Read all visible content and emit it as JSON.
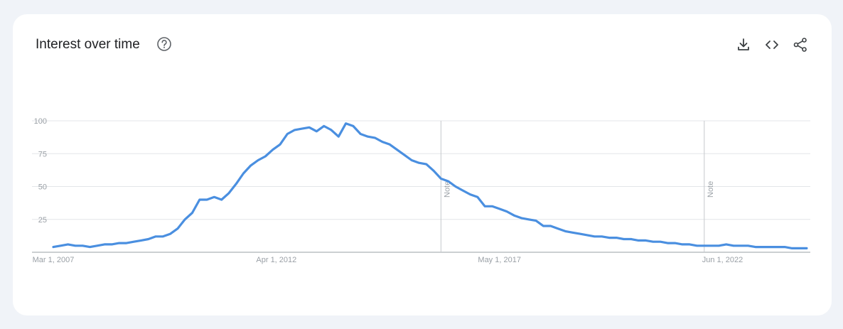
{
  "card": {
    "title": "Interest over time",
    "help_icon": "help-circle-icon",
    "actions": [
      {
        "name": "download-icon"
      },
      {
        "name": "embed-icon"
      },
      {
        "name": "share-icon"
      }
    ]
  },
  "chart_data": {
    "type": "line",
    "title": "Interest over time",
    "xlabel": "",
    "ylabel": "",
    "ylim": [
      0,
      100
    ],
    "y_ticks": [
      25,
      50,
      75,
      100
    ],
    "x_tick_labels": [
      "Mar 1, 2007",
      "Apr 1, 2012",
      "May 1, 2017",
      "Jun 1, 2022"
    ],
    "x_range": [
      "2007-03",
      "2024-06"
    ],
    "grid": true,
    "line_color": "#4a8fe0",
    "notes": [
      {
        "x": "2016-01",
        "label": "Note"
      },
      {
        "x": "2022-01",
        "label": "Note"
      }
    ],
    "series": [
      {
        "x": [
          "2007-03",
          "2007-05",
          "2007-07",
          "2007-09",
          "2007-11",
          "2008-01",
          "2008-03",
          "2008-05",
          "2008-07",
          "2008-09",
          "2008-11",
          "2009-01",
          "2009-03",
          "2009-05",
          "2009-07",
          "2009-09",
          "2009-11",
          "2010-01",
          "2010-03",
          "2010-05",
          "2010-07",
          "2010-09",
          "2010-11",
          "2011-01",
          "2011-03",
          "2011-05",
          "2011-07",
          "2011-09",
          "2011-11",
          "2012-01",
          "2012-03",
          "2012-05",
          "2012-07",
          "2012-09",
          "2012-11",
          "2013-01",
          "2013-03",
          "2013-05",
          "2013-07",
          "2013-09",
          "2013-11",
          "2014-01",
          "2014-03",
          "2014-05",
          "2014-07",
          "2014-09",
          "2014-11",
          "2015-01",
          "2015-03",
          "2015-05",
          "2015-07",
          "2015-09",
          "2015-11",
          "2016-01",
          "2016-03",
          "2016-05",
          "2016-07",
          "2016-09",
          "2016-11",
          "2017-01",
          "2017-03",
          "2017-05",
          "2017-07",
          "2017-09",
          "2017-11",
          "2018-01",
          "2018-03",
          "2018-05",
          "2018-07",
          "2018-09",
          "2018-11",
          "2019-01",
          "2019-03",
          "2019-05",
          "2019-07",
          "2019-09",
          "2019-11",
          "2020-01",
          "2020-03",
          "2020-05",
          "2020-07",
          "2020-09",
          "2020-11",
          "2021-01",
          "2021-03",
          "2021-05",
          "2021-07",
          "2021-09",
          "2021-11",
          "2022-01",
          "2022-03",
          "2022-05",
          "2022-07",
          "2022-09",
          "2022-11",
          "2023-01",
          "2023-03",
          "2023-05",
          "2023-07",
          "2023-09",
          "2023-11",
          "2024-01",
          "2024-03",
          "2024-05"
        ],
        "values": [
          4,
          5,
          6,
          5,
          5,
          4,
          5,
          6,
          6,
          7,
          7,
          8,
          9,
          10,
          12,
          12,
          14,
          18,
          25,
          30,
          40,
          40,
          42,
          40,
          45,
          52,
          60,
          66,
          70,
          73,
          78,
          82,
          90,
          93,
          94,
          95,
          92,
          96,
          93,
          88,
          98,
          96,
          90,
          88,
          87,
          84,
          82,
          78,
          74,
          70,
          68,
          67,
          62,
          56,
          54,
          50,
          47,
          44,
          42,
          35,
          35,
          33,
          31,
          28,
          26,
          25,
          24,
          20,
          20,
          18,
          16,
          15,
          14,
          13,
          12,
          12,
          11,
          11,
          10,
          10,
          9,
          9,
          8,
          8,
          7,
          7,
          6,
          6,
          5,
          5,
          5,
          5,
          6,
          5,
          5,
          5,
          4,
          4,
          4,
          4,
          4,
          3,
          3,
          3
        ]
      }
    ]
  }
}
